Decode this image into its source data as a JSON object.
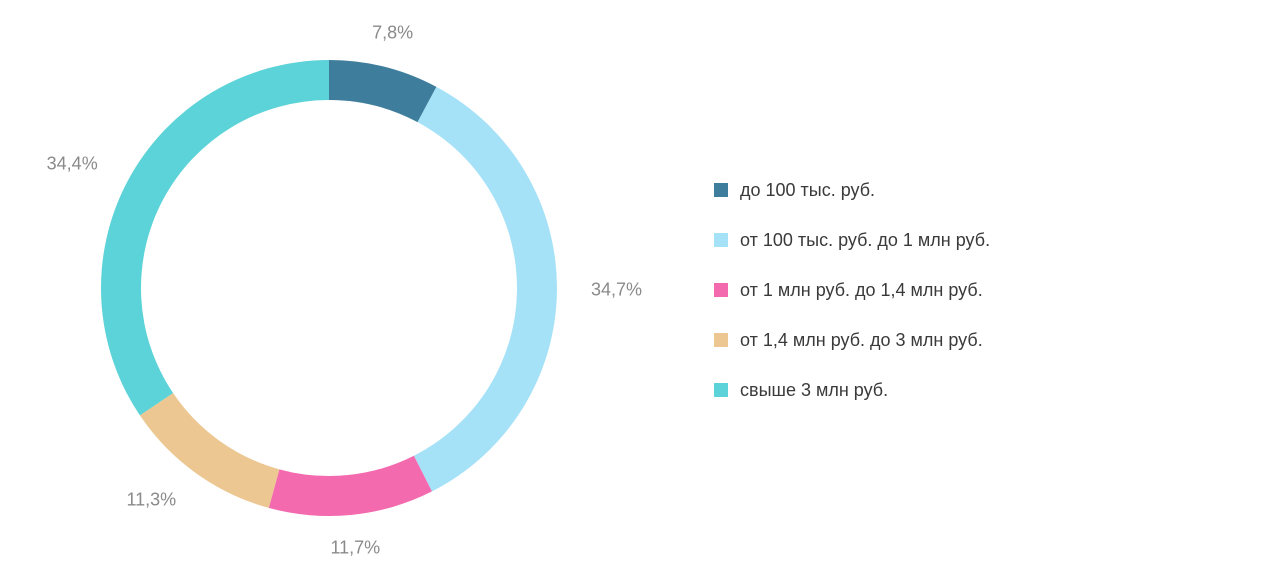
{
  "chart_data": {
    "type": "donut",
    "categories": [
      "до 100 тыс. руб.",
      "от 100 тыс. руб. до 1 млн руб.",
      "от 1 млн руб. до 1,4 млн руб.",
      "от 1,4 млн руб. до 3 млн руб.",
      "свыше 3 млн руб."
    ],
    "values": [
      7.8,
      34.7,
      11.7,
      11.3,
      34.4
    ],
    "value_labels": [
      "7,8%",
      "34,7%",
      "11,7%",
      "11,3%",
      "34,4%"
    ],
    "colors": [
      "#3e7d9c",
      "#a6e2f7",
      "#f46aaf",
      "#ecc792",
      "#5bd3d8"
    ],
    "legend": "right"
  }
}
